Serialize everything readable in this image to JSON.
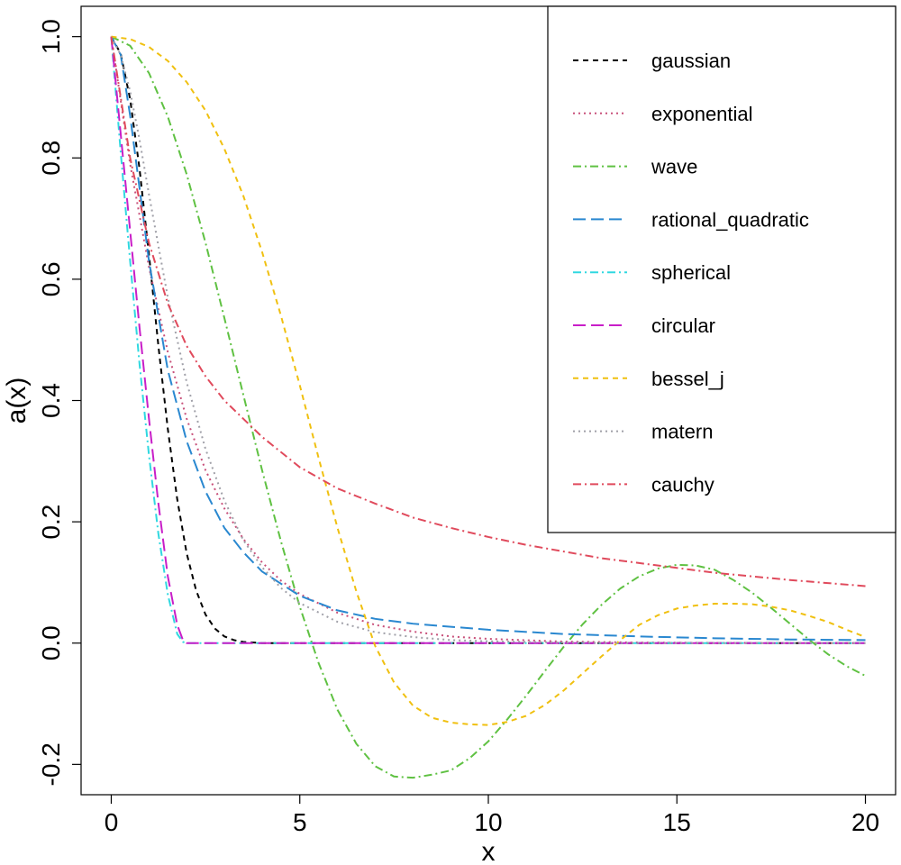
{
  "chart_data": {
    "type": "line",
    "title": "",
    "xlabel": "x",
    "ylabel": "a(x)",
    "xlim": [
      -0.8,
      20.8
    ],
    "ylim": [
      -0.25,
      1.05
    ],
    "x_ticks": [
      0,
      5,
      10,
      15,
      20
    ],
    "x_tick_labels": [
      "0",
      "5",
      "10",
      "15",
      "20"
    ],
    "y_ticks": [
      -0.2,
      0.0,
      0.2,
      0.4,
      0.6,
      0.8,
      1.0
    ],
    "y_tick_labels": [
      "-0.2",
      "0.0",
      "0.2",
      "0.4",
      "0.6",
      "0.8",
      "1.0"
    ],
    "grid": false,
    "legend_position": "top-right",
    "series": [
      {
        "name": "gaussian",
        "color": "#000000",
        "dash": "6,5",
        "x": [
          0,
          0.25,
          0.5,
          0.75,
          1.0,
          1.25,
          1.5,
          1.75,
          2.0,
          2.25,
          2.5,
          2.75,
          3.0,
          3.25,
          3.5,
          4.0,
          5.0,
          10.0,
          15.0,
          20.0
        ],
        "y": [
          1.0,
          0.972,
          0.897,
          0.782,
          0.641,
          0.49,
          0.353,
          0.237,
          0.148,
          0.087,
          0.047,
          0.024,
          0.011,
          0.005,
          0.002,
          0.0,
          0.0,
          0.0,
          0.0,
          0.0
        ]
      },
      {
        "name": "exponential",
        "color": "#c8507a",
        "dash": "2,4",
        "x": [
          0,
          0.5,
          1.0,
          1.5,
          2.0,
          2.5,
          3.0,
          3.5,
          4.0,
          4.5,
          5.0,
          6.0,
          7.0,
          8.0,
          9.0,
          10.0,
          12.0,
          14.0,
          16.0,
          18.0,
          20.0
        ],
        "y": [
          1.0,
          0.79,
          0.62,
          0.48,
          0.37,
          0.285,
          0.222,
          0.172,
          0.133,
          0.103,
          0.081,
          0.05,
          0.03,
          0.019,
          0.011,
          0.007,
          0.0025,
          0.001,
          0.0004,
          0.0001,
          0.0
        ]
      },
      {
        "name": "wave",
        "color": "#5fc142",
        "dash": "9,4,2,4",
        "x": [
          0,
          0.5,
          1.0,
          1.5,
          2.0,
          2.5,
          3.0,
          3.5,
          4.0,
          4.5,
          5.0,
          5.5,
          6.0,
          6.5,
          7.0,
          7.5,
          8.0,
          8.5,
          9.0,
          9.5,
          10.0,
          10.5,
          11.0,
          11.5,
          12.0,
          12.5,
          13.0,
          13.5,
          14.0,
          14.5,
          15.0,
          15.5,
          16.0,
          16.5,
          17.0,
          17.5,
          18.0,
          18.5,
          19.0,
          19.5,
          20.0
        ],
        "y": [
          1.0,
          0.985,
          0.94,
          0.868,
          0.773,
          0.66,
          0.536,
          0.41,
          0.285,
          0.168,
          0.06,
          -0.033,
          -0.11,
          -0.166,
          -0.203,
          -0.22,
          -0.222,
          -0.217,
          -0.21,
          -0.19,
          -0.162,
          -0.126,
          -0.087,
          -0.046,
          -0.006,
          0.031,
          0.063,
          0.09,
          0.11,
          0.123,
          0.129,
          0.128,
          0.121,
          0.104,
          0.083,
          0.058,
          0.032,
          0.006,
          -0.018,
          -0.038,
          -0.054
        ]
      },
      {
        "name": "rational_quadratic",
        "color": "#2a88d0",
        "dash": "14,6",
        "x": [
          0,
          0.25,
          0.5,
          0.75,
          1.0,
          1.5,
          2.0,
          2.5,
          3.0,
          3.5,
          4.0,
          5.0,
          6.0,
          7.0,
          8.0,
          10.0,
          12.0,
          14.0,
          16.0,
          18.0,
          20.0
        ],
        "y": [
          1.0,
          0.97,
          0.87,
          0.75,
          0.63,
          0.45,
          0.333,
          0.25,
          0.19,
          0.15,
          0.118,
          0.078,
          0.054,
          0.04,
          0.032,
          0.022,
          0.015,
          0.011,
          0.008,
          0.006,
          0.005
        ]
      },
      {
        "name": "spherical",
        "color": "#30d8e0",
        "dash": "9,4,2,4",
        "x": [
          0,
          0.25,
          0.5,
          0.75,
          1.0,
          1.25,
          1.5,
          1.75,
          1.9,
          2.0,
          5.0,
          10.0,
          15.0,
          20.0
        ],
        "y": [
          1.0,
          0.81,
          0.63,
          0.46,
          0.31,
          0.18,
          0.08,
          0.015,
          0.002,
          0.0,
          0.0,
          0.0,
          0.0,
          0.0
        ]
      },
      {
        "name": "circular",
        "color": "#c81ec8",
        "dash": "14,6",
        "x": [
          0,
          0.25,
          0.5,
          0.75,
          1.0,
          1.25,
          1.5,
          1.75,
          1.9,
          2.0,
          5.0,
          10.0,
          15.0,
          20.0
        ],
        "y": [
          1.0,
          0.84,
          0.68,
          0.52,
          0.37,
          0.23,
          0.11,
          0.03,
          0.005,
          0.0,
          0.0,
          0.0,
          0.0,
          0.0
        ]
      },
      {
        "name": "bessel_j",
        "color": "#f0c010",
        "dash": "6,5",
        "x": [
          0,
          0.5,
          1.0,
          1.5,
          2.0,
          2.5,
          3.0,
          3.5,
          4.0,
          4.5,
          5.0,
          5.5,
          6.0,
          6.5,
          7.0,
          7.5,
          8.0,
          8.5,
          9.0,
          9.5,
          10.0,
          10.5,
          11.0,
          11.5,
          12.0,
          12.5,
          13.0,
          13.5,
          14.0,
          14.5,
          15.0,
          15.5,
          16.0,
          16.5,
          17.0,
          17.5,
          18.0,
          18.5,
          19.0,
          19.5,
          20.0
        ],
        "y": [
          1.0,
          0.996,
          0.983,
          0.96,
          0.925,
          0.878,
          0.815,
          0.738,
          0.645,
          0.54,
          0.425,
          0.305,
          0.19,
          0.085,
          -0.005,
          -0.065,
          -0.103,
          -0.123,
          -0.131,
          -0.134,
          -0.135,
          -0.13,
          -0.12,
          -0.102,
          -0.078,
          -0.05,
          -0.022,
          0.005,
          0.03,
          0.046,
          0.057,
          0.062,
          0.065,
          0.065,
          0.064,
          0.06,
          0.054,
          0.045,
          0.035,
          0.022,
          0.01
        ]
      },
      {
        "name": "matern",
        "color": "#a0a0a8",
        "dash": "2,4",
        "x": [
          0,
          0.25,
          0.5,
          0.75,
          1.0,
          1.5,
          2.0,
          2.5,
          3.0,
          3.5,
          4.0,
          4.5,
          5.0,
          6.0,
          7.0,
          8.0,
          9.0,
          10.0,
          12.0,
          14.0,
          16.0,
          18.0,
          20.0
        ],
        "y": [
          1.0,
          0.97,
          0.91,
          0.83,
          0.74,
          0.57,
          0.43,
          0.32,
          0.235,
          0.17,
          0.125,
          0.091,
          0.066,
          0.035,
          0.018,
          0.01,
          0.005,
          0.003,
          0.001,
          0.0,
          0.0,
          0.0,
          0.0
        ]
      },
      {
        "name": "cauchy",
        "color": "#e04a5c",
        "dash": "9,4,2,4",
        "x": [
          0,
          0.5,
          1.0,
          1.5,
          2.0,
          2.5,
          3.0,
          4.0,
          5.0,
          6.0,
          7.0,
          8.0,
          9.0,
          10.0,
          11.0,
          12.0,
          13.0,
          14.0,
          15.0,
          16.0,
          17.0,
          18.0,
          19.0,
          20.0
        ],
        "y": [
          1.0,
          0.8,
          0.66,
          0.56,
          0.49,
          0.44,
          0.4,
          0.34,
          0.29,
          0.255,
          0.23,
          0.207,
          0.19,
          0.175,
          0.162,
          0.151,
          0.14,
          0.132,
          0.124,
          0.116,
          0.11,
          0.104,
          0.099,
          0.094
        ]
      }
    ]
  }
}
